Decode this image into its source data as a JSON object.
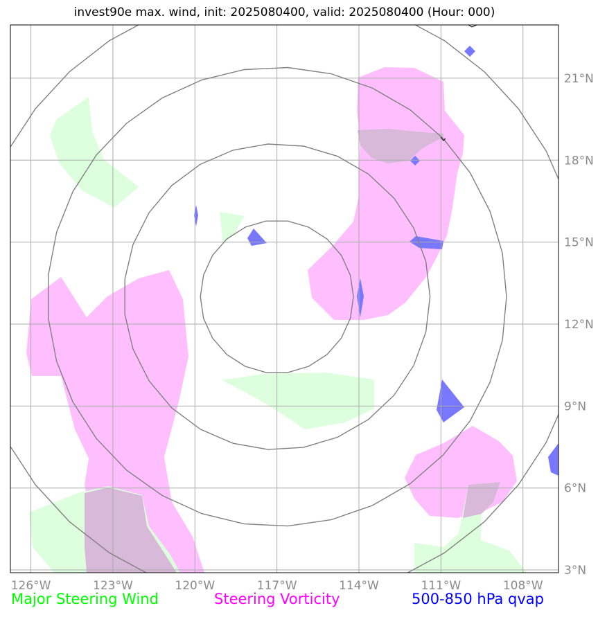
{
  "title": "invest90e max. wind, init: 2025080400, valid: 2025080400 (Hour: 000)",
  "map": {
    "lon_range": [
      -126.75,
      -106.7
    ],
    "lat_range": [
      2.9,
      22.95
    ],
    "lon_ticks": [
      "126°W",
      "123°W",
      "120°W",
      "117°W",
      "114°W",
      "111°W",
      "108°W"
    ],
    "lat_ticks": [
      "3°N",
      "6°N",
      "9°N",
      "12°N",
      "15°N",
      "18°N",
      "21°N"
    ],
    "range_rings_center": [
      -117.0,
      13.0
    ],
    "range_rings_radius_deg": [
      2.8,
      5.6,
      8.4,
      11.2
    ]
  },
  "legend": {
    "wind": {
      "label": "Major Steering Wind",
      "color": "#00ff00"
    },
    "vorticity": {
      "label": "Steering Vorticity",
      "color": "#ff00ff"
    },
    "qvap": {
      "label": "500-850 hPa qvap",
      "color": "#0000ff"
    }
  },
  "colors": {
    "wind_fill": "#ddffdd",
    "vorticity_fill": "#ffbfff",
    "qvap_fill": "#7878ff",
    "overlap_fill": "#d9b9d9",
    "grid": "#aaaaaa",
    "rings": "#808080"
  }
}
